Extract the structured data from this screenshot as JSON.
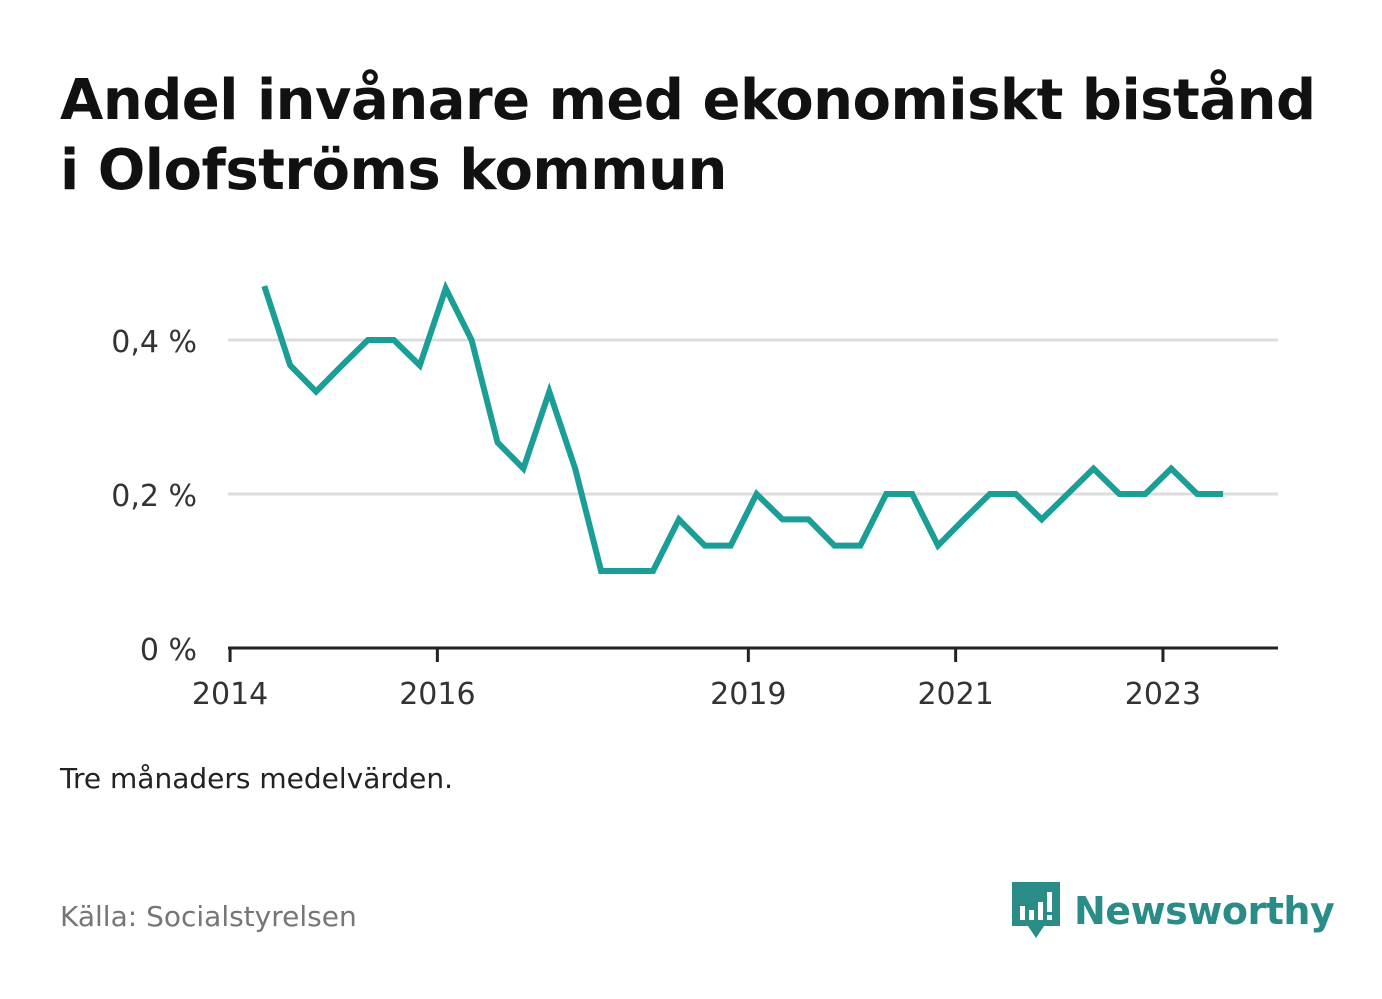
{
  "title": "Andel invånare med ekonomiskt bistånd i Olofströms kommun",
  "note": "Tre månaders medelvärden.",
  "source": "Källa: Socialstyrelsen",
  "brand": {
    "name": "Newsworthy",
    "icon": "newsworthy-logo-icon",
    "color": "#2a8c86"
  },
  "chart_data": {
    "type": "line",
    "title": "Andel invånare med ekonomiskt bistånd i Olofströms kommun",
    "xlabel": "",
    "ylabel": "",
    "x_ticks": [
      {
        "value": 2014.0,
        "label": "2014"
      },
      {
        "value": 2016.0,
        "label": "2016"
      },
      {
        "value": 2019.0,
        "label": "2019"
      },
      {
        "value": 2021.0,
        "label": "2021"
      },
      {
        "value": 2023.0,
        "label": "2023"
      }
    ],
    "y_ticks": [
      {
        "value": 0.0,
        "label": "0 %"
      },
      {
        "value": 0.2,
        "label": "0,2 %"
      },
      {
        "value": 0.4,
        "label": "0,4 %"
      }
    ],
    "xlim": [
      2013.98,
      2024.11
    ],
    "ylim": [
      0,
      0.4
    ],
    "grid": true,
    "line_color": "#1a9e96",
    "series": [
      {
        "x": [
          2014.33,
          2014.58,
          2014.83,
          2015.08,
          2015.33,
          2015.58,
          2015.83,
          2016.08,
          2016.33,
          2016.58,
          2016.83,
          2017.08,
          2017.33,
          2017.58,
          2017.83,
          2018.08,
          2018.33,
          2018.58,
          2018.83,
          2019.08,
          2019.33,
          2019.58,
          2019.83,
          2020.08,
          2020.33,
          2020.58,
          2020.83,
          2021.08,
          2021.33,
          2021.58,
          2021.83,
          2022.08,
          2022.33,
          2022.58,
          2022.83,
          2023.08,
          2023.33,
          2023.58
        ],
        "values": [
          0.47,
          0.367,
          0.333,
          0.367,
          0.4,
          0.4,
          0.367,
          0.467,
          0.4,
          0.267,
          0.233,
          0.333,
          0.233,
          0.1,
          0.1,
          0.1,
          0.167,
          0.133,
          0.133,
          0.2,
          0.167,
          0.167,
          0.133,
          0.133,
          0.2,
          0.2,
          0.133,
          0.167,
          0.2,
          0.2,
          0.167,
          0.2,
          0.233,
          0.2,
          0.2,
          0.233,
          0.2,
          0.2
        ]
      }
    ]
  }
}
